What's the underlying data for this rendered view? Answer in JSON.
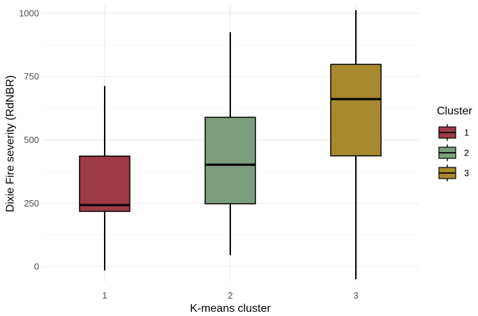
{
  "chart_data": {
    "type": "boxplot",
    "title": "",
    "xlabel": "K-means cluster",
    "ylabel": "Dixie Fire severity (RdNBR)",
    "categories": [
      "1",
      "2",
      "3"
    ],
    "ylim": [
      -60,
      1030
    ],
    "y_ticks": [
      0,
      250,
      500,
      750,
      1000
    ],
    "y_tick_labels": [
      "0",
      "250",
      "500",
      "750",
      "1000"
    ],
    "grid": true,
    "legend": {
      "title": "Cluster",
      "position": "right",
      "entries": [
        "1",
        "2",
        "3"
      ]
    },
    "boxes": [
      {
        "category": "1",
        "min": -15,
        "q1": 218,
        "median": 243,
        "q3": 436,
        "max": 713,
        "color": "#9e3a45"
      },
      {
        "category": "2",
        "min": 45,
        "q1": 248,
        "median": 402,
        "q3": 589,
        "max": 925,
        "color": "#7d9e7d"
      },
      {
        "category": "3",
        "min": -50,
        "q1": 437,
        "median": 661,
        "q3": 798,
        "max": 1012,
        "color": "#a8892d"
      }
    ]
  }
}
